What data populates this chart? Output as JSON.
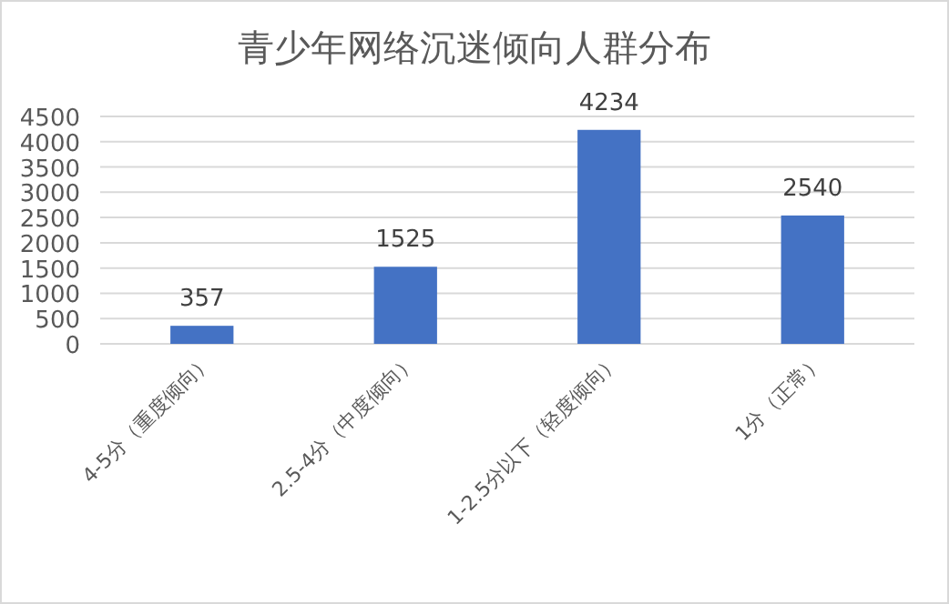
{
  "chart_data": {
    "type": "bar",
    "title": "青少年网络沉迷倾向人群分布",
    "categories": [
      "4-5分（重度倾向）",
      "2.5-4分（中度倾向）",
      "1-2.5分以下（轻度倾向）",
      "1分（正常）"
    ],
    "series": [
      {
        "color": "#4472c4",
        "values": [
          357,
          1525,
          4234,
          2540
        ]
      }
    ],
    "ylim": [
      0,
      4500
    ],
    "yticks": [
      0,
      500,
      1000,
      1500,
      2000,
      2500,
      3000,
      3500,
      4000,
      4500
    ],
    "grid": "y",
    "data_labels": true
  }
}
